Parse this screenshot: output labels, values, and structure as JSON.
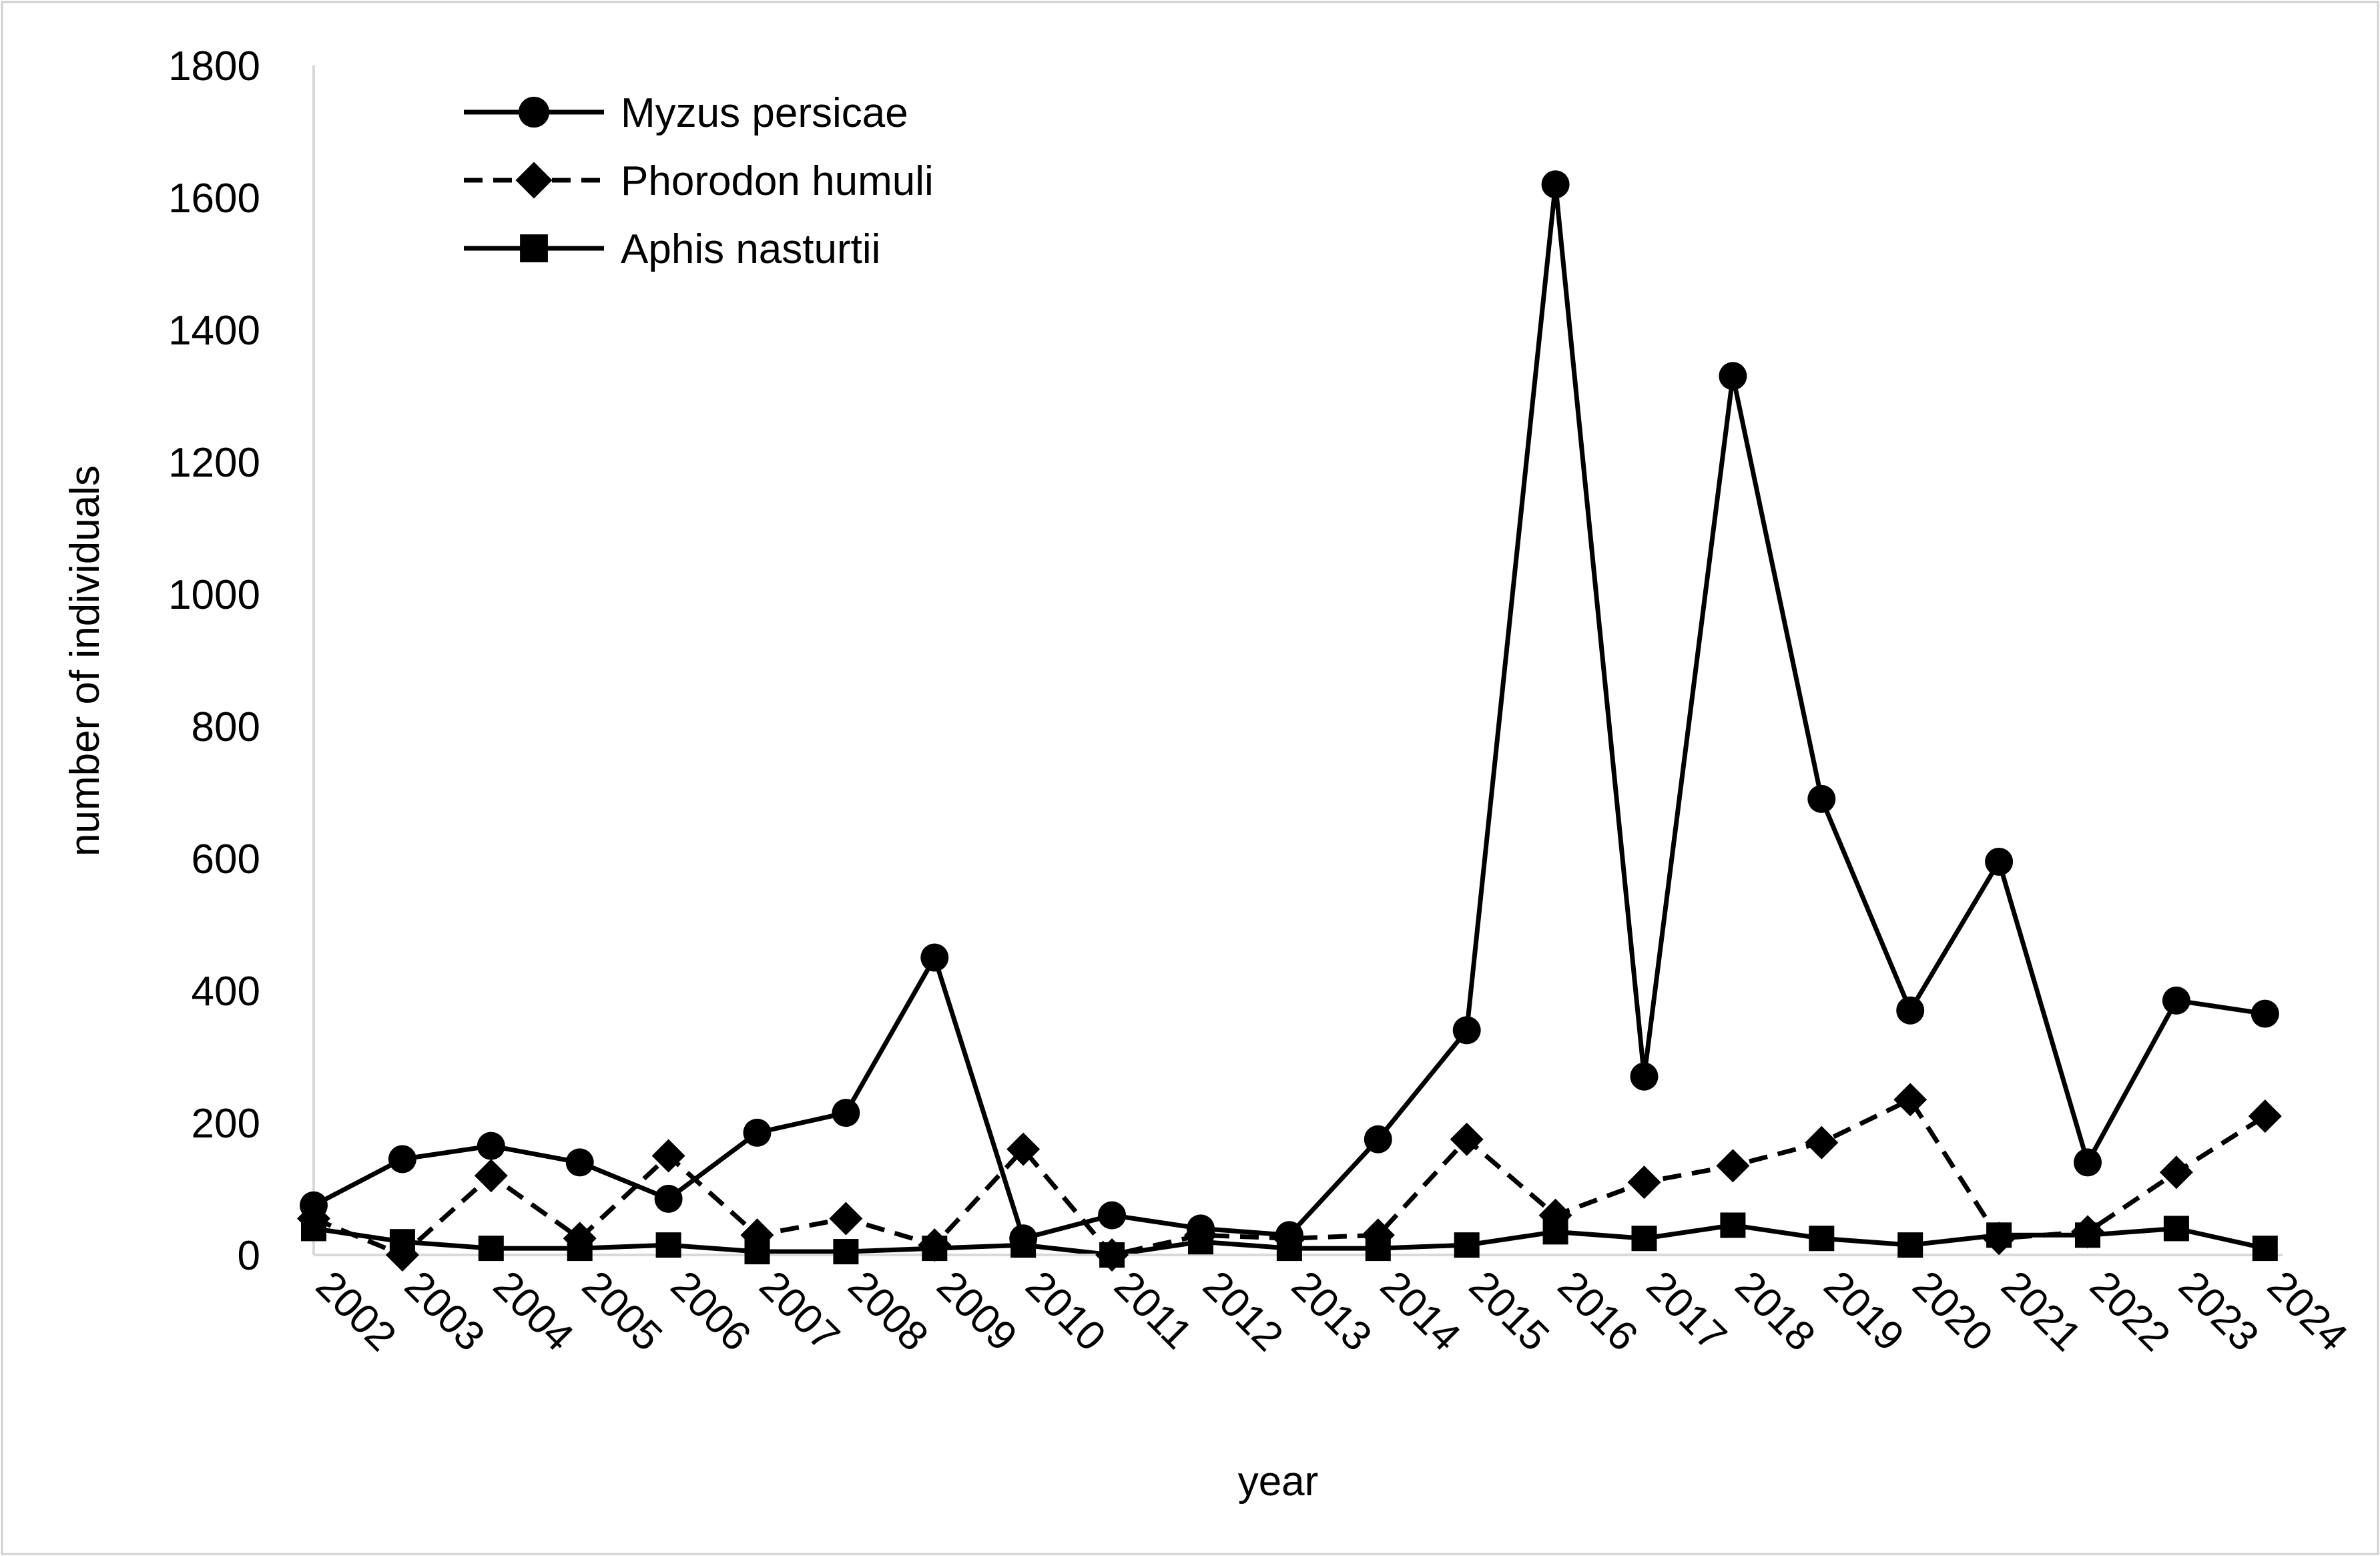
{
  "chart_data": {
    "type": "line",
    "title": "",
    "xlabel": "year",
    "ylabel": "number of individuals",
    "ylim": [
      0,
      1800
    ],
    "yticks": [
      0,
      200,
      400,
      600,
      800,
      1000,
      1200,
      1400,
      1600,
      1800
    ],
    "grid": false,
    "legend_position": "top-left",
    "x": [
      "2002",
      "2003",
      "2004",
      "2005",
      "2006",
      "2007",
      "2008",
      "2009",
      "2010",
      "2011",
      "2012",
      "2013",
      "2014",
      "2015",
      "2016",
      "2017",
      "2018",
      "2019",
      "2020",
      "2021",
      "2022",
      "2023",
      "2024"
    ],
    "series": [
      {
        "name": "Myzus persicae",
        "marker": "circle",
        "line_style": "solid",
        "color": "#000000",
        "values": [
          75,
          145,
          165,
          140,
          85,
          185,
          215,
          450,
          25,
          60,
          40,
          30,
          175,
          340,
          1620,
          270,
          1330,
          690,
          370,
          595,
          140,
          385,
          365
        ]
      },
      {
        "name": "Phorodon humuli",
        "marker": "diamond",
        "line_style": "dashed",
        "color": "#000000",
        "values": [
          55,
          0,
          120,
          25,
          150,
          30,
          55,
          15,
          160,
          0,
          30,
          25,
          30,
          175,
          60,
          110,
          135,
          170,
          235,
          25,
          35,
          125,
          210
        ]
      },
      {
        "name": "Aphis nasturtii",
        "marker": "square",
        "line_style": "solid",
        "color": "#000000",
        "values": [
          40,
          20,
          10,
          10,
          15,
          5,
          5,
          10,
          15,
          0,
          20,
          10,
          10,
          15,
          35,
          25,
          45,
          25,
          15,
          30,
          30,
          40,
          10
        ]
      }
    ]
  }
}
